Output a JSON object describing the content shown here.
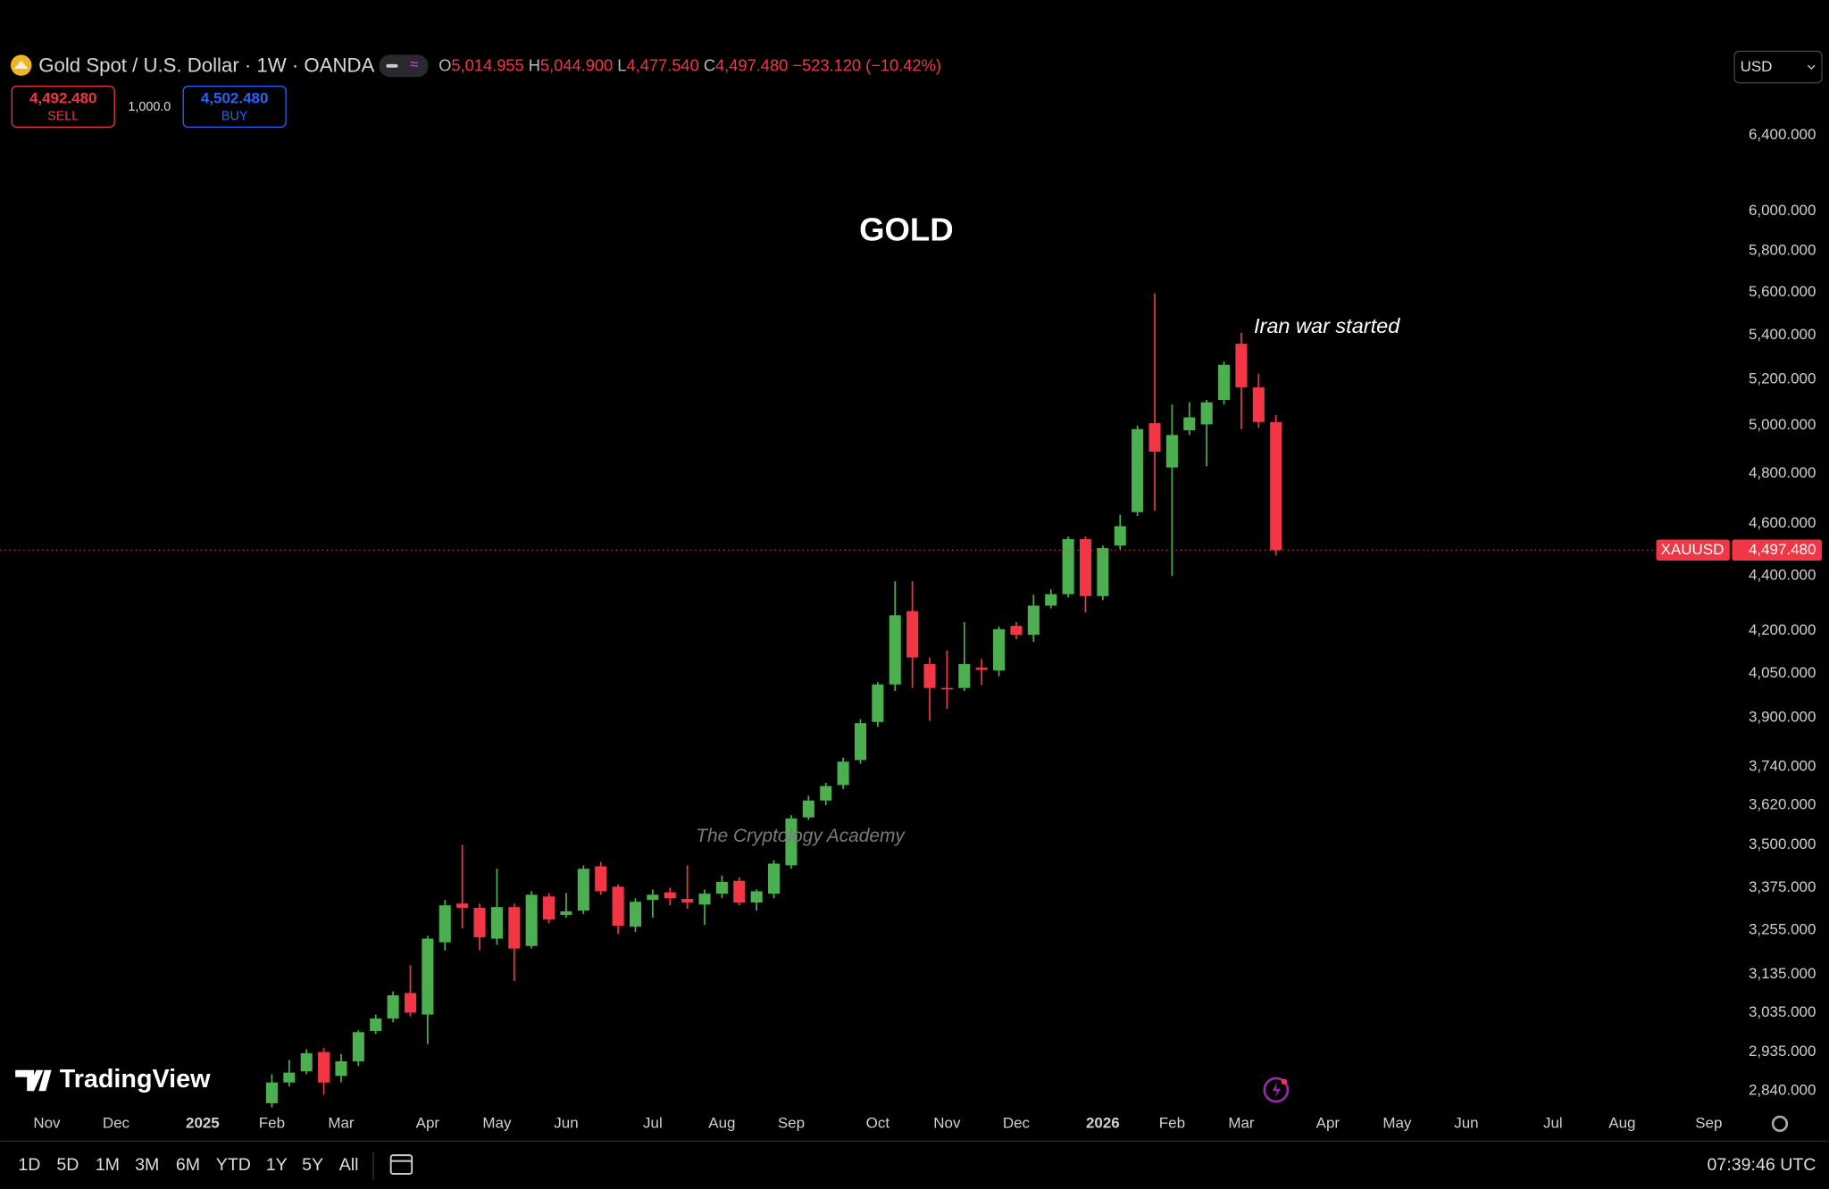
{
  "header": {
    "symbol": "Gold Spot / U.S. Dollar · 1W · OANDA",
    "ohlc": [
      {
        "label": "O",
        "value": "5,014.955"
      },
      {
        "label": "H",
        "value": "5,044.900"
      },
      {
        "label": "L",
        "value": "4,477.540"
      },
      {
        "label": "C",
        "value": "4,497.480"
      }
    ],
    "change": "−523.120 (−10.42%)",
    "sell": {
      "price": "4,492.480",
      "label": "SELL"
    },
    "quantity": "1,000.0",
    "buy": {
      "price": "4,502.480",
      "label": "BUY"
    },
    "currency": "USD"
  },
  "watermark": "The Cryptology Academy",
  "logo": "TradingView",
  "toolbar": {
    "ranges": [
      "1D",
      "5D",
      "1M",
      "3M",
      "6M",
      "YTD",
      "1Y",
      "5Y",
      "All"
    ],
    "time": "07:39:46 UTC"
  },
  "chart_data": {
    "type": "candlestick",
    "title": "GOLD",
    "annotation": "Iran war started",
    "log_scale": true,
    "grid": false,
    "up_color": "#4caf50",
    "down_color": "#f23645",
    "categories": [
      "Nov",
      null,
      null,
      null,
      "Dec",
      null,
      null,
      null,
      null,
      "2025",
      null,
      null,
      null,
      "Feb",
      null,
      null,
      null,
      "Mar",
      null,
      null,
      null,
      null,
      "Apr",
      null,
      null,
      null,
      "May",
      null,
      null,
      null,
      "Jun",
      null,
      null,
      null,
      null,
      "Jul",
      null,
      null,
      null,
      "Aug",
      null,
      null,
      null,
      "Sep",
      null,
      null,
      null,
      null,
      "Oct",
      null,
      null,
      null,
      "Nov",
      null,
      null,
      null,
      "Dec",
      null,
      null,
      null,
      null,
      "2026",
      null,
      null,
      null,
      "Feb",
      null,
      null,
      null,
      "Mar",
      null,
      null,
      null,
      null,
      "Apr",
      null,
      null,
      null,
      "May",
      null,
      null,
      null,
      "Jun",
      null,
      null,
      null,
      null,
      "Jul",
      null,
      null,
      null,
      "Aug",
      null,
      null,
      null,
      null,
      "Sep"
    ],
    "open": [
      null,
      null,
      null,
      null,
      null,
      null,
      null,
      null,
      null,
      null,
      null,
      null,
      null,
      2810,
      2860,
      2887,
      2935,
      2876,
      2912,
      2988,
      3020,
      3086,
      3030,
      3222,
      3330,
      3318,
      3232,
      3320,
      3212,
      3350,
      3298,
      3310,
      3437,
      3378,
      3265,
      3340,
      3362,
      3343,
      3327,
      3358,
      3395,
      3333,
      3358,
      3440,
      3583,
      3635,
      3683,
      3762,
      3886,
      4012,
      4270,
      4082,
      4000,
      4000,
      4070,
      4060,
      4217,
      4185,
      4290,
      4332,
      4540,
      4325,
      4515,
      4645,
      5010,
      4825,
      4980,
      5005,
      5110,
      5360,
      5165,
      5014.955,
      null,
      null,
      null,
      null,
      null,
      null,
      null,
      null,
      null,
      null,
      null,
      null,
      null,
      null,
      null,
      null,
      null,
      null,
      null,
      null,
      null,
      null,
      null,
      null,
      null
    ],
    "high": [
      null,
      null,
      null,
      null,
      null,
      null,
      null,
      null,
      null,
      null,
      null,
      null,
      null,
      2880,
      2915,
      2942,
      2945,
      2930,
      2990,
      3030,
      3090,
      3160,
      3240,
      3340,
      3500,
      3330,
      3430,
      3330,
      3365,
      3360,
      3360,
      3440,
      3450,
      3385,
      3345,
      3370,
      3375,
      3440,
      3370,
      3410,
      3405,
      3370,
      3455,
      3590,
      3650,
      3690,
      3770,
      3895,
      4020,
      4380,
      4380,
      4105,
      4130,
      4230,
      4100,
      4215,
      4230,
      4330,
      4350,
      4550,
      4550,
      4515,
      4635,
      5000,
      5595,
      5090,
      5100,
      5110,
      5280,
      5410,
      5225,
      5044.9,
      null,
      null,
      null,
      null,
      null,
      null,
      null,
      null,
      null,
      null,
      null,
      null,
      null,
      null,
      null,
      null,
      null,
      null,
      null,
      null,
      null,
      null,
      null,
      null,
      null
    ],
    "low": [
      null,
      null,
      null,
      null,
      null,
      null,
      null,
      null,
      null,
      null,
      null,
      null,
      null,
      2800,
      2850,
      2880,
      2830,
      2860,
      2900,
      2980,
      3010,
      3025,
      2955,
      3200,
      3260,
      3200,
      3215,
      3118,
      3205,
      3275,
      3290,
      3300,
      3355,
      3245,
      3250,
      3290,
      3325,
      3315,
      3270,
      3345,
      3325,
      3310,
      3345,
      3430,
      3575,
      3620,
      3670,
      3750,
      3870,
      3990,
      4000,
      3890,
      3930,
      3990,
      4010,
      4040,
      4170,
      4160,
      4280,
      4320,
      4265,
      4310,
      4500,
      4630,
      4650,
      4400,
      4960,
      4830,
      5090,
      4985,
      4990,
      4477.54,
      null,
      null,
      null,
      null,
      null,
      null,
      null,
      null,
      null,
      null,
      null,
      null,
      null,
      null,
      null,
      null,
      null,
      null,
      null,
      null,
      null,
      null,
      null,
      null,
      null
    ],
    "close": [
      null,
      null,
      null,
      null,
      null,
      null,
      null,
      null,
      null,
      null,
      null,
      null,
      null,
      2860,
      2884,
      2932,
      2860,
      2912,
      2985,
      3020,
      3080,
      3035,
      3232,
      3325,
      3318,
      3236,
      3320,
      3205,
      3355,
      3285,
      3308,
      3430,
      3365,
      3268,
      3335,
      3355,
      3345,
      3333,
      3358,
      3392,
      3333,
      3365,
      3445,
      3580,
      3635,
      3680,
      3757,
      3882,
      4012,
      4255,
      4105,
      4000,
      3995,
      4082,
      4062,
      4205,
      4185,
      4290,
      4332,
      4540,
      4325,
      4505,
      4590,
      4985,
      4890,
      4960,
      5035,
      5100,
      5265,
      5165,
      5015,
      4497.48,
      null,
      null,
      null,
      null,
      null,
      null,
      null,
      null,
      null,
      null,
      null,
      null,
      null,
      null,
      null,
      null,
      null,
      null,
      null,
      null,
      null,
      null,
      null,
      null,
      null
    ],
    "ylim": [
      2800,
      7180
    ],
    "yticks": [
      {
        "value": 6400,
        "label": "6,400.000"
      },
      {
        "value": 6000,
        "label": "6,000.000"
      },
      {
        "value": 5800,
        "label": "5,800.000"
      },
      {
        "value": 5600,
        "label": "5,600.000"
      },
      {
        "value": 5400,
        "label": "5,400.000"
      },
      {
        "value": 5200,
        "label": "5,200.000"
      },
      {
        "value": 5000,
        "label": "5,000.000"
      },
      {
        "value": 4800,
        "label": "4,800.000"
      },
      {
        "value": 4600,
        "label": "4,600.000"
      },
      {
        "value": 4400,
        "label": "4,400.000"
      },
      {
        "value": 4200,
        "label": "4,200.000"
      },
      {
        "value": 4050,
        "label": "4,050.000"
      },
      {
        "value": 3900,
        "label": "3,900.000"
      },
      {
        "value": 3740,
        "label": "3,740.000"
      },
      {
        "value": 3620,
        "label": "3,620.000"
      },
      {
        "value": 3500,
        "label": "3,500.000"
      },
      {
        "value": 3375,
        "label": "3,375.000"
      },
      {
        "value": 3255,
        "label": "3,255.000"
      },
      {
        "value": 3135,
        "label": "3,135.000"
      },
      {
        "value": 3035,
        "label": "3,035.000"
      },
      {
        "value": 2935,
        "label": "2,935.000"
      },
      {
        "value": 2840,
        "label": "2,840.000"
      }
    ],
    "last_symbol": "XAUUSD",
    "last_price": {
      "value": 4497.48,
      "label": "4,497.480"
    }
  }
}
